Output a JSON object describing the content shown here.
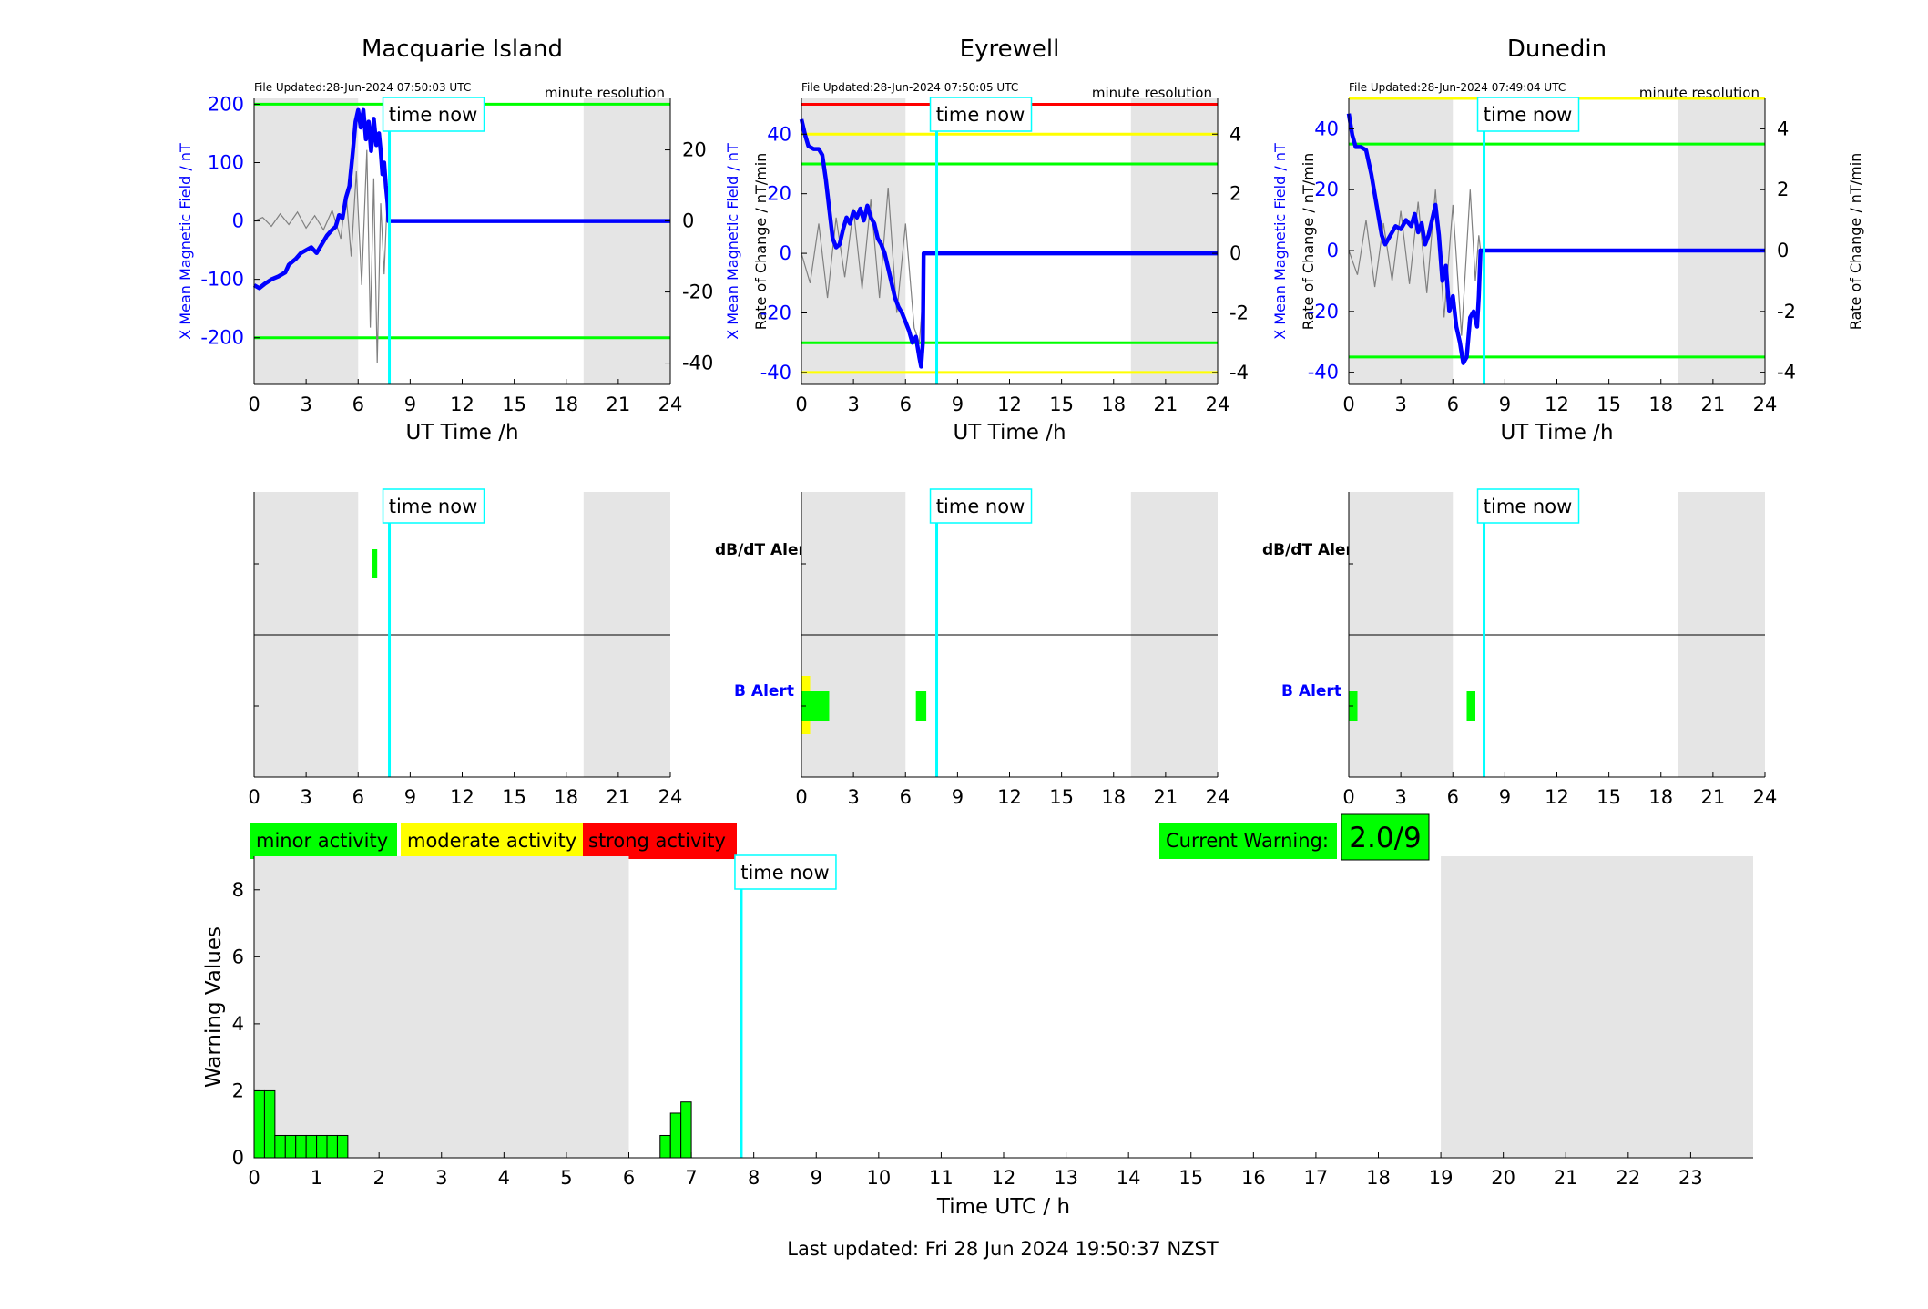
{
  "figure": {
    "last_updated": "Last updated: Fri 28 Jun 2024 19:50:37 NZST",
    "time_now_label": "time now",
    "resolution_label": "minute resolution",
    "xlabel_station": "UT Time /h",
    "xlabel_bottom": "Time UTC / h",
    "ylabel_bottom": "Warning Values",
    "dbdt_alert_label": "dB/dT Alert",
    "b_alert_label": "B Alert",
    "legend": [
      {
        "label": "minor activity",
        "color": "#00ff00"
      },
      {
        "label": "moderate activity",
        "color": "#ffff00"
      },
      {
        "label": "strong activity",
        "color": "#ff0000"
      }
    ],
    "current_warning_label": "Current Warning:",
    "current_warning_value": "2.0/9",
    "colors": {
      "field": "#0000ff",
      "rate": "#808080",
      "now": "#00ffff",
      "shade": "#e5e5e5",
      "green": "#00ff00",
      "yellow": "#ffff00",
      "red": "#ff0000"
    }
  },
  "chart_data": [
    {
      "type": "line",
      "title": "Macquarie Island",
      "file_updated": "File Updated:28-Jun-2024 07:50:03 UTC",
      "xlabel": "UT Time /h",
      "ylabel_left": "X Mean Magnetic Field / nT",
      "ylabel_right": "Rate of Change / nT/min",
      "xlim": [
        0,
        24
      ],
      "ylim": [
        -280,
        210
      ],
      "ylim_right": [
        -46,
        34.5
      ],
      "xticks": [
        0,
        3,
        6,
        9,
        12,
        15,
        18,
        21,
        24
      ],
      "yticks": [
        -200,
        -100,
        0,
        100,
        200
      ],
      "yticks_right": [
        -40,
        -20,
        0,
        20
      ],
      "night_shading": [
        [
          0,
          6
        ],
        [
          19,
          24
        ]
      ],
      "time_now": 7.8,
      "thresholds": [
        {
          "value": 200,
          "color": "green"
        },
        {
          "value": -200,
          "color": "green"
        }
      ],
      "field_series": [
        [
          0,
          -110
        ],
        [
          0.3,
          -115
        ],
        [
          0.6,
          -108
        ],
        [
          1,
          -100
        ],
        [
          1.4,
          -95
        ],
        [
          1.8,
          -88
        ],
        [
          2,
          -75
        ],
        [
          2.4,
          -65
        ],
        [
          2.7,
          -55
        ],
        [
          3,
          -50
        ],
        [
          3.3,
          -45
        ],
        [
          3.6,
          -55
        ],
        [
          3.9,
          -40
        ],
        [
          4.2,
          -25
        ],
        [
          4.5,
          -15
        ],
        [
          4.7,
          -10
        ],
        [
          4.9,
          10
        ],
        [
          5.1,
          5
        ],
        [
          5.3,
          40
        ],
        [
          5.5,
          60
        ],
        [
          5.7,
          120
        ],
        [
          5.85,
          170
        ],
        [
          6,
          190
        ],
        [
          6.15,
          160
        ],
        [
          6.3,
          190
        ],
        [
          6.45,
          140
        ],
        [
          6.6,
          170
        ],
        [
          6.75,
          120
        ],
        [
          6.9,
          175
        ],
        [
          7.05,
          130
        ],
        [
          7.2,
          150
        ],
        [
          7.3,
          120
        ],
        [
          7.4,
          80
        ],
        [
          7.5,
          100
        ],
        [
          7.6,
          60
        ],
        [
          7.7,
          30
        ],
        [
          7.75,
          0
        ],
        [
          24,
          0
        ]
      ],
      "rate_series": [
        [
          0,
          0
        ],
        [
          0.5,
          1
        ],
        [
          1,
          -1.5
        ],
        [
          1.5,
          2
        ],
        [
          2,
          -1
        ],
        [
          2.5,
          2.5
        ],
        [
          3,
          -2
        ],
        [
          3.5,
          1.5
        ],
        [
          4,
          -2.5
        ],
        [
          4.5,
          3
        ],
        [
          5,
          -5
        ],
        [
          5.3,
          8
        ],
        [
          5.6,
          -10
        ],
        [
          5.9,
          14
        ],
        [
          6.2,
          -18
        ],
        [
          6.5,
          20
        ],
        [
          6.7,
          -30
        ],
        [
          6.9,
          12
        ],
        [
          7.1,
          -40
        ],
        [
          7.3,
          5
        ],
        [
          7.5,
          -15
        ],
        [
          7.65,
          3
        ],
        [
          7.7,
          0
        ],
        [
          24,
          0
        ]
      ],
      "dbdt_alert": [
        {
          "start": 6.8,
          "end": 7.1,
          "color": "green"
        }
      ],
      "b_alert": []
    },
    {
      "type": "line",
      "title": "Eyrewell",
      "file_updated": "File Updated:28-Jun-2024 07:50:05 UTC",
      "xlabel": "UT Time /h",
      "ylabel_left": "X Mean Magnetic Field / nT",
      "ylabel_right": "Rate of Change / nT/min",
      "xlim": [
        0,
        24
      ],
      "ylim": [
        -44,
        52
      ],
      "ylim_right": [
        -4.4,
        5.2
      ],
      "xticks": [
        0,
        3,
        6,
        9,
        12,
        15,
        18,
        21,
        24
      ],
      "yticks": [
        -40,
        -20,
        0,
        20,
        40
      ],
      "yticks_right": [
        -4,
        -2,
        0,
        2,
        4
      ],
      "night_shading": [
        [
          0,
          6
        ],
        [
          19,
          24
        ]
      ],
      "time_now": 7.8,
      "thresholds": [
        {
          "value": 50,
          "color": "red"
        },
        {
          "value": 40,
          "color": "yellow"
        },
        {
          "value": 30,
          "color": "green"
        },
        {
          "value": -30,
          "color": "green"
        },
        {
          "value": -40,
          "color": "yellow"
        }
      ],
      "field_series": [
        [
          0,
          45
        ],
        [
          0.2,
          40
        ],
        [
          0.4,
          36
        ],
        [
          0.7,
          35
        ],
        [
          1,
          35
        ],
        [
          1.2,
          33
        ],
        [
          1.4,
          25
        ],
        [
          1.6,
          15
        ],
        [
          1.8,
          5
        ],
        [
          2,
          2
        ],
        [
          2.2,
          3
        ],
        [
          2.4,
          8
        ],
        [
          2.6,
          12
        ],
        [
          2.8,
          10
        ],
        [
          3,
          14
        ],
        [
          3.2,
          12
        ],
        [
          3.4,
          15
        ],
        [
          3.6,
          11
        ],
        [
          3.8,
          16
        ],
        [
          4,
          12
        ],
        [
          4.2,
          10
        ],
        [
          4.4,
          5
        ],
        [
          4.6,
          3
        ],
        [
          4.8,
          0
        ],
        [
          5,
          -5
        ],
        [
          5.2,
          -10
        ],
        [
          5.4,
          -15
        ],
        [
          5.6,
          -18
        ],
        [
          5.8,
          -20
        ],
        [
          6,
          -23
        ],
        [
          6.2,
          -26
        ],
        [
          6.4,
          -30
        ],
        [
          6.6,
          -28
        ],
        [
          6.8,
          -35
        ],
        [
          6.9,
          -38
        ],
        [
          7,
          -30
        ],
        [
          7.05,
          0
        ],
        [
          24,
          0
        ]
      ],
      "rate_series": [
        [
          0,
          0
        ],
        [
          0.5,
          -1
        ],
        [
          1,
          1
        ],
        [
          1.5,
          -1.5
        ],
        [
          2,
          1.2
        ],
        [
          2.5,
          -0.8
        ],
        [
          3,
          1.5
        ],
        [
          3.5,
          -1.2
        ],
        [
          4,
          1.8
        ],
        [
          4.5,
          -1.5
        ],
        [
          5,
          2.2
        ],
        [
          5.5,
          -2
        ],
        [
          6,
          1
        ],
        [
          6.5,
          -2.5
        ],
        [
          6.8,
          -3
        ],
        [
          7,
          -1.5
        ],
        [
          7.05,
          0
        ],
        [
          24,
          0
        ]
      ],
      "dbdt_alert": [],
      "b_alert": [
        {
          "start": 0,
          "end": 0.5,
          "color": "yellow"
        },
        {
          "start": 0,
          "end": 1.6,
          "color": "green"
        },
        {
          "start": 6.6,
          "end": 7.2,
          "color": "green"
        }
      ]
    },
    {
      "type": "line",
      "title": "Dunedin",
      "file_updated": "File Updated:28-Jun-2024 07:49:04 UTC",
      "xlabel": "UT Time /h",
      "ylabel_left": "X Mean Magnetic Field / nT",
      "ylabel_right": "Rate of Change / nT/min",
      "xlim": [
        0,
        24
      ],
      "ylim": [
        -44,
        50
      ],
      "ylim_right": [
        -4.4,
        5.0
      ],
      "xticks": [
        0,
        3,
        6,
        9,
        12,
        15,
        18,
        21,
        24
      ],
      "yticks": [
        -40,
        -20,
        0,
        20,
        40
      ],
      "yticks_right": [
        -4,
        -2,
        0,
        2,
        4
      ],
      "night_shading": [
        [
          0,
          6
        ],
        [
          19,
          24
        ]
      ],
      "time_now": 7.8,
      "thresholds": [
        {
          "value": 50,
          "color": "yellow"
        },
        {
          "value": 35,
          "color": "green"
        },
        {
          "value": -35,
          "color": "green"
        }
      ],
      "field_series": [
        [
          0,
          45
        ],
        [
          0.2,
          38
        ],
        [
          0.4,
          34
        ],
        [
          0.7,
          34
        ],
        [
          1,
          33
        ],
        [
          1.3,
          25
        ],
        [
          1.6,
          15
        ],
        [
          1.9,
          5
        ],
        [
          2.1,
          2
        ],
        [
          2.4,
          5
        ],
        [
          2.7,
          8
        ],
        [
          3,
          7
        ],
        [
          3.3,
          10
        ],
        [
          3.6,
          8
        ],
        [
          3.8,
          12
        ],
        [
          4,
          6
        ],
        [
          4.2,
          9
        ],
        [
          4.4,
          2
        ],
        [
          4.6,
          5
        ],
        [
          4.8,
          10
        ],
        [
          5,
          15
        ],
        [
          5.2,
          5
        ],
        [
          5.4,
          -10
        ],
        [
          5.6,
          -5
        ],
        [
          5.8,
          -20
        ],
        [
          6,
          -15
        ],
        [
          6.2,
          -25
        ],
        [
          6.4,
          -30
        ],
        [
          6.6,
          -37
        ],
        [
          6.8,
          -35
        ],
        [
          7,
          -22
        ],
        [
          7.2,
          -20
        ],
        [
          7.4,
          -25
        ],
        [
          7.5,
          -15
        ],
        [
          7.6,
          0
        ],
        [
          24,
          0
        ]
      ],
      "rate_series": [
        [
          0,
          0
        ],
        [
          0.5,
          -0.8
        ],
        [
          1,
          1
        ],
        [
          1.5,
          -1.2
        ],
        [
          2,
          0.9
        ],
        [
          2.5,
          -1
        ],
        [
          3,
          1.3
        ],
        [
          3.5,
          -1.1
        ],
        [
          4,
          1.6
        ],
        [
          4.5,
          -1.4
        ],
        [
          5,
          2
        ],
        [
          5.5,
          -2.2
        ],
        [
          6,
          1.5
        ],
        [
          6.5,
          -2.8
        ],
        [
          7,
          2
        ],
        [
          7.3,
          -1
        ],
        [
          7.5,
          0.5
        ],
        [
          7.6,
          0
        ],
        [
          24,
          0
        ]
      ],
      "dbdt_alert": [],
      "b_alert": [
        {
          "start": 0,
          "end": 0.5,
          "color": "green"
        },
        {
          "start": 6.8,
          "end": 7.3,
          "color": "green"
        }
      ]
    },
    {
      "type": "bar",
      "title": "",
      "xlabel": "Time UTC / h",
      "ylabel": "Warning Values",
      "xlim": [
        0,
        24
      ],
      "ylim": [
        0,
        9
      ],
      "xticks": [
        0,
        1,
        2,
        3,
        4,
        5,
        6,
        7,
        8,
        9,
        10,
        11,
        12,
        13,
        14,
        15,
        16,
        17,
        18,
        19,
        20,
        21,
        22,
        23
      ],
      "yticks": [
        0,
        2,
        4,
        6,
        8
      ],
      "night_shading": [
        [
          0,
          6
        ],
        [
          19,
          24
        ]
      ],
      "time_now": 7.8,
      "bar_width": 0.1667,
      "bars": [
        [
          0,
          2
        ],
        [
          0.1667,
          2
        ],
        [
          0.3333,
          0.6667
        ],
        [
          0.5,
          0.6667
        ],
        [
          0.6667,
          0.6667
        ],
        [
          0.8333,
          0.6667
        ],
        [
          1,
          0.6667
        ],
        [
          1.1667,
          0.6667
        ],
        [
          1.3333,
          0.6667
        ],
        [
          6.5,
          0.6667
        ],
        [
          6.6667,
          1.3333
        ],
        [
          6.8333,
          1.6667
        ]
      ]
    }
  ]
}
